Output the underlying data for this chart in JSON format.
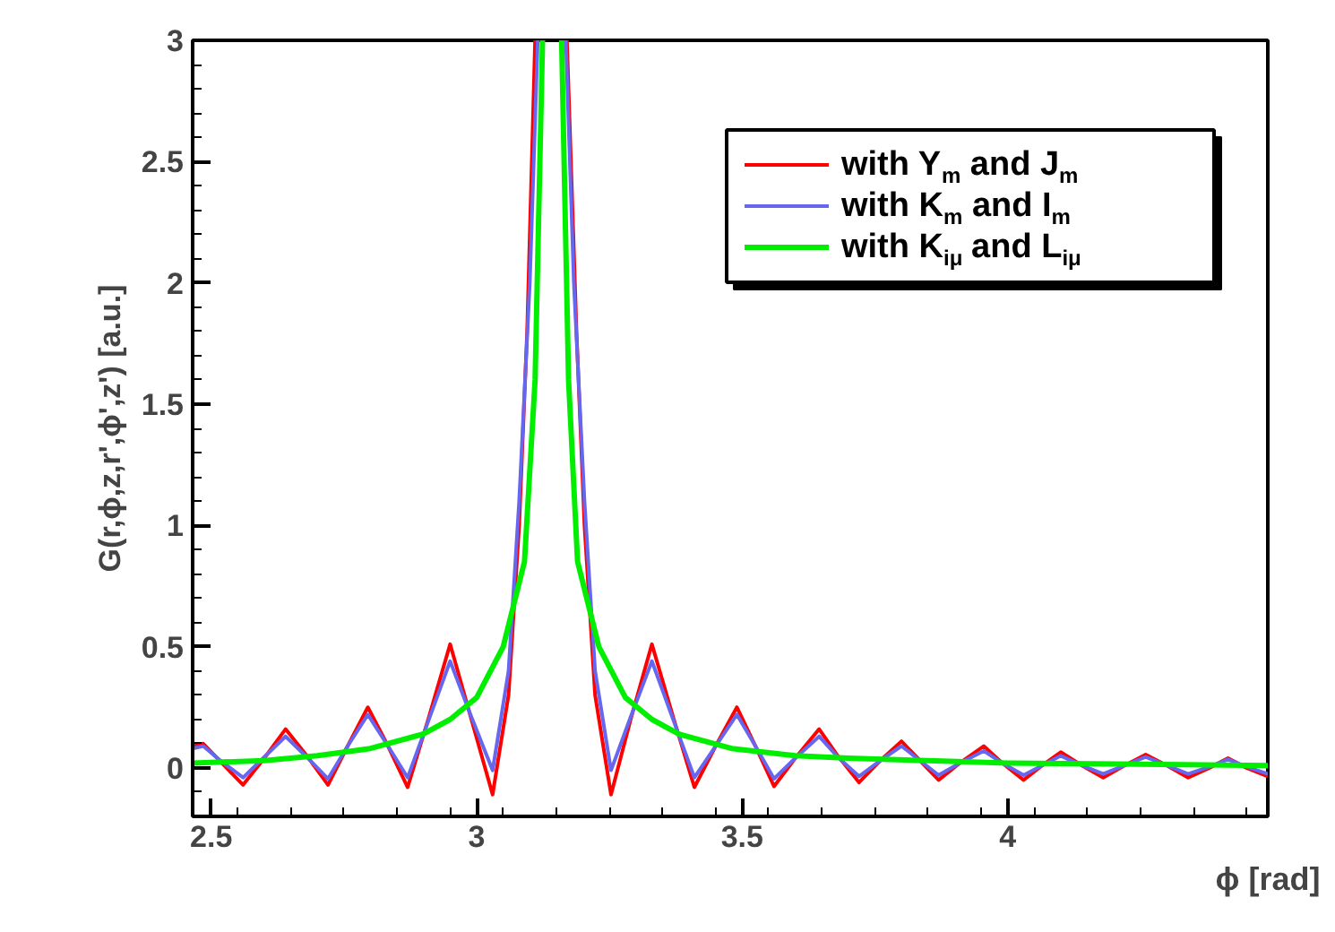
{
  "chart_data": {
    "type": "line",
    "xlabel": "ϕ [rad]",
    "ylabel": "G(r,ϕ,z,r',ϕ',z') [a.u.]",
    "xlim": [
      2.465,
      4.49
    ],
    "ylim": [
      -0.2,
      3
    ],
    "xticks": [
      2.5,
      3,
      3.5,
      4
    ],
    "yticks": [
      0,
      0.5,
      1,
      1.5,
      2,
      2.5,
      3
    ],
    "grid": false,
    "legend": "top right",
    "marker": "none",
    "line_style": "solid",
    "series": [
      {
        "name": "with Y$_{m}$ and J$_{m}$",
        "color": "#ff0000",
        "x": [
          2.465,
          2.485,
          2.52,
          2.56,
          2.6,
          2.64,
          2.68,
          2.72,
          2.757,
          2.795,
          2.833,
          2.87,
          2.91,
          2.95,
          2.99,
          3.03,
          3.06,
          3.08,
          3.095,
          3.11,
          3.14,
          3.17,
          3.188,
          3.203,
          3.223,
          3.253,
          3.29,
          3.33,
          3.37,
          3.41,
          3.45,
          3.49,
          3.525,
          3.56,
          3.6,
          3.645,
          3.68,
          3.72,
          3.76,
          3.8,
          3.835,
          3.87,
          3.91,
          3.955,
          3.99,
          4.03,
          4.065,
          4.1,
          4.14,
          4.18,
          4.22,
          4.26,
          4.3,
          4.34,
          4.38,
          4.415,
          4.45,
          4.49
        ],
        "values": [
          0.09,
          0.1,
          0.02,
          -0.07,
          0.04,
          0.16,
          0.05,
          -0.07,
          0.09,
          0.25,
          0.09,
          -0.08,
          0.21,
          0.51,
          0.2,
          -0.11,
          0.3,
          1.0,
          1.8,
          3.0,
          null,
          3.0,
          1.8,
          1.0,
          0.3,
          -0.11,
          0.2,
          0.51,
          0.21,
          -0.08,
          0.09,
          0.25,
          0.09,
          -0.076,
          0.04,
          0.16,
          0.05,
          -0.06,
          0.03,
          0.11,
          0.03,
          -0.05,
          0.02,
          0.09,
          0.02,
          -0.05,
          0.01,
          0.065,
          0.01,
          -0.04,
          0.01,
          0.055,
          0.01,
          -0.04,
          0.0,
          0.04,
          0.0,
          -0.035
        ]
      },
      {
        "name": "with K$_{m}$ and I$_{m}$",
        "color": "#6666ee",
        "x": [
          2.465,
          2.485,
          2.52,
          2.56,
          2.6,
          2.64,
          2.68,
          2.72,
          2.757,
          2.795,
          2.833,
          2.87,
          2.91,
          2.95,
          2.99,
          3.03,
          3.06,
          3.08,
          3.1,
          3.115,
          3.14,
          3.168,
          3.183,
          3.203,
          3.223,
          3.253,
          3.29,
          3.33,
          3.37,
          3.41,
          3.45,
          3.49,
          3.525,
          3.56,
          3.6,
          3.645,
          3.68,
          3.72,
          3.76,
          3.8,
          3.835,
          3.87,
          3.91,
          3.955,
          3.99,
          4.03,
          4.065,
          4.1,
          4.14,
          4.18,
          4.22,
          4.26,
          4.3,
          4.34,
          4.38,
          4.415,
          4.45,
          4.49
        ],
        "values": [
          0.08,
          0.09,
          0.025,
          -0.04,
          0.045,
          0.13,
          0.045,
          -0.045,
          0.09,
          0.22,
          0.09,
          -0.04,
          0.2,
          0.44,
          0.21,
          -0.01,
          0.4,
          1.1,
          2.0,
          3.0,
          null,
          3.0,
          2.0,
          1.1,
          0.4,
          -0.01,
          0.21,
          0.44,
          0.2,
          -0.04,
          0.09,
          0.22,
          0.09,
          -0.045,
          0.04,
          0.13,
          0.045,
          -0.035,
          0.03,
          0.09,
          0.03,
          -0.03,
          0.02,
          0.07,
          0.02,
          -0.03,
          0.01,
          0.05,
          0.01,
          -0.025,
          0.01,
          0.045,
          0.01,
          -0.025,
          0.005,
          0.035,
          0.005,
          -0.025
        ]
      },
      {
        "name": "with K$_{iμ}$ and L$_{iμ}$",
        "color": "#00ee00",
        "x": [
          2.465,
          2.6,
          2.7,
          2.8,
          2.9,
          2.95,
          3.0,
          3.05,
          3.09,
          3.11,
          3.124,
          3.14,
          3.16,
          3.173,
          3.19,
          3.23,
          3.28,
          3.33,
          3.38,
          3.48,
          3.6,
          3.7,
          3.85,
          4.0,
          4.25,
          4.49
        ],
        "values": [
          0.02,
          0.03,
          0.05,
          0.08,
          0.14,
          0.2,
          0.29,
          0.5,
          0.85,
          1.6,
          3.0,
          null,
          3.0,
          1.6,
          0.85,
          0.5,
          0.29,
          0.2,
          0.14,
          0.08,
          0.05,
          0.04,
          0.03,
          0.02,
          0.015,
          0.01
        ]
      }
    ]
  }
}
